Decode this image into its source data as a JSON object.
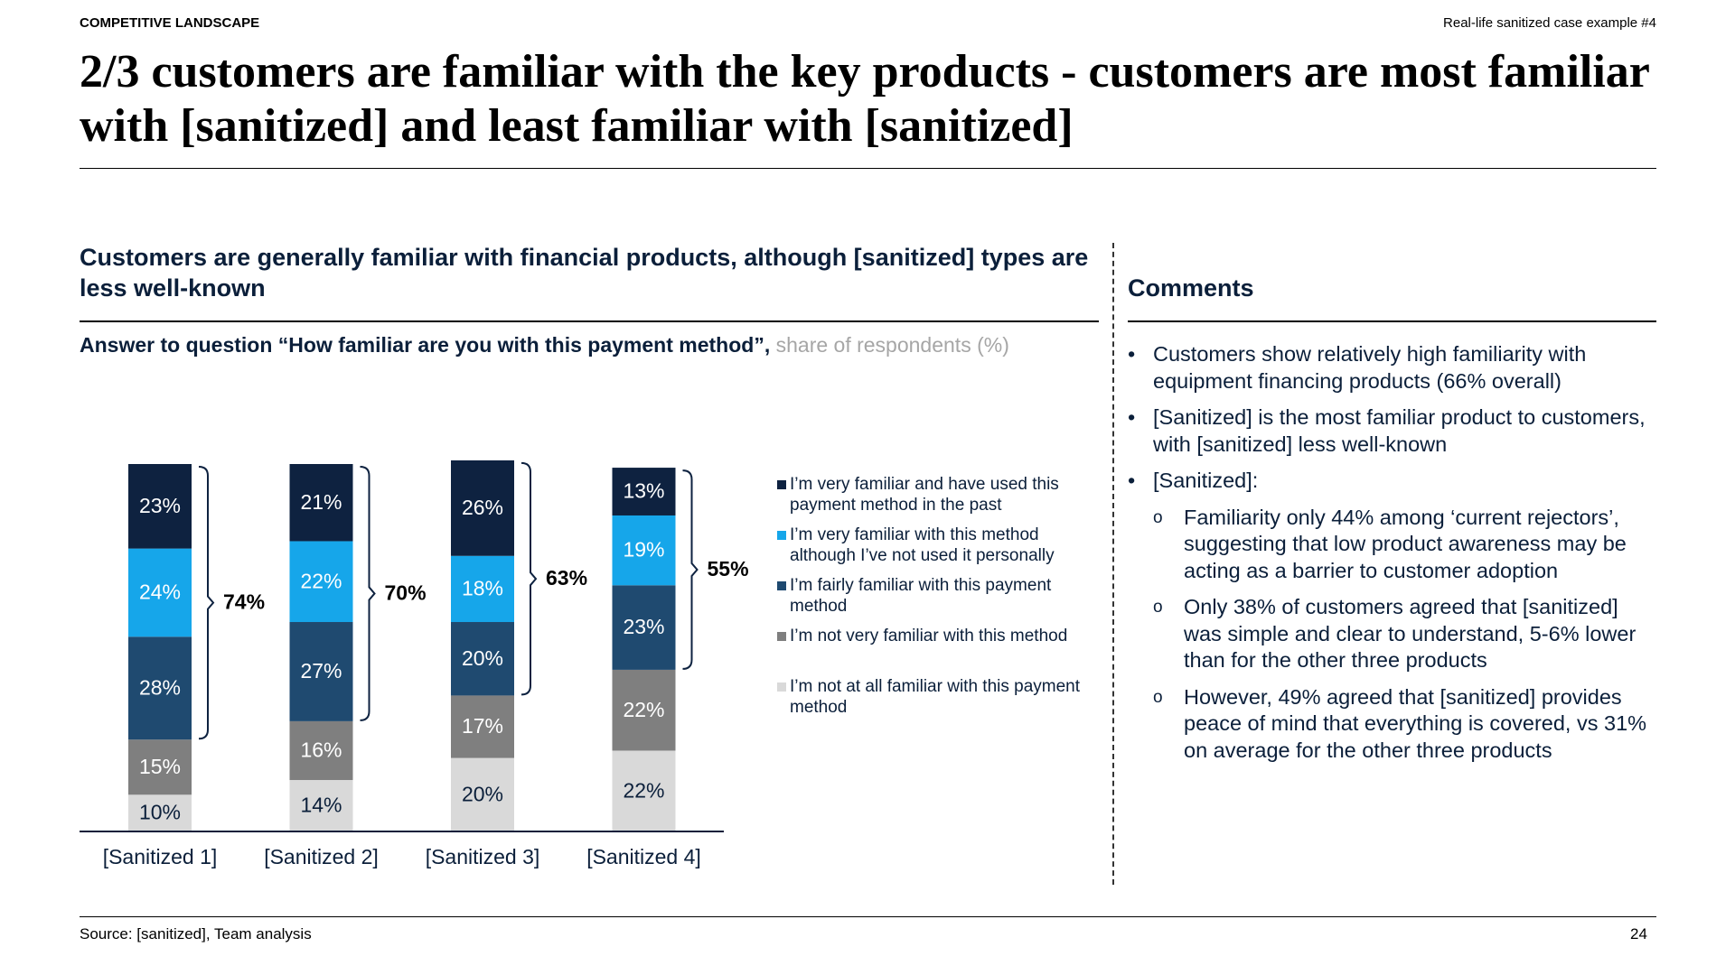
{
  "header": {
    "section": "COMPETITIVE LANDSCAPE",
    "case": "Real-life sanitized case example #4",
    "title": "2/3 customers are familiar with the key products - customers are most familiar with [sanitized] and least familiar with [sanitized]"
  },
  "chart_data": {
    "type": "stacked_bar",
    "title": "Customers are generally familiar with financial products, although [sanitized] types are less well-known",
    "subtitle": "Answer to question “How familiar are you with this payment method”,",
    "unit_note": "share of respondents (%)",
    "categories": [
      "[Sanitized 1]",
      "[Sanitized 2]",
      "[Sanitized 3]",
      "[Sanitized 4]"
    ],
    "series": [
      {
        "name": "I’m very familiar and have used this payment method in the past",
        "color": "#0e2240",
        "values": [
          23,
          21,
          26,
          13
        ],
        "value_labels": [
          "23%",
          "21%",
          "26%",
          "13%"
        ]
      },
      {
        "name": "I’m very familiar with this method although I’ve not used it personally",
        "color": "#16a6ea",
        "values": [
          24,
          22,
          18,
          19
        ],
        "value_labels": [
          "24%",
          "22%",
          "18%",
          "19%"
        ]
      },
      {
        "name": "I’m fairly familiar with this payment method",
        "color": "#1f4a70",
        "values": [
          28,
          27,
          20,
          23
        ],
        "value_labels": [
          "28%",
          "27%",
          "20%",
          "23%"
        ]
      },
      {
        "name": "I’m not very familiar with this method",
        "color": "#7f7f7f",
        "values": [
          15,
          16,
          17,
          22
        ],
        "value_labels": [
          "15%",
          "16%",
          "17%",
          "22%"
        ]
      },
      {
        "name": "I’m not at all familiar with this payment method",
        "color": "#d9d9d9",
        "values": [
          10,
          14,
          20,
          22
        ],
        "value_labels": [
          "10%",
          "14%",
          "20%",
          "22%"
        ]
      }
    ],
    "totals": {
      "values": [
        74,
        70,
        63,
        55
      ],
      "value_labels": [
        "74%",
        "70%",
        "63%",
        "55%"
      ]
    }
  },
  "comments": {
    "title": "Comments",
    "items": [
      {
        "text": "Customers show relatively high familiarity with equipment financing products (66% overall)"
      },
      {
        "text": "[Sanitized] is the most familiar product to customers, with [sanitized] less well-known"
      },
      {
        "text": "[Sanitized]:",
        "sub": [
          "Familiarity only 44% among ‘current rejectors’, suggesting that low product awareness may be acting as a barrier to customer adoption",
          "Only 38% of customers agreed that [sanitized] was simple and clear to understand, 5-6% lower than for the other three products",
          "However, 49% agreed that [sanitized] provides peace of mind that everything is covered, vs 31% on average for the other three products"
        ]
      }
    ]
  },
  "footer": {
    "source": "Source: [sanitized], Team analysis",
    "page": "24"
  }
}
